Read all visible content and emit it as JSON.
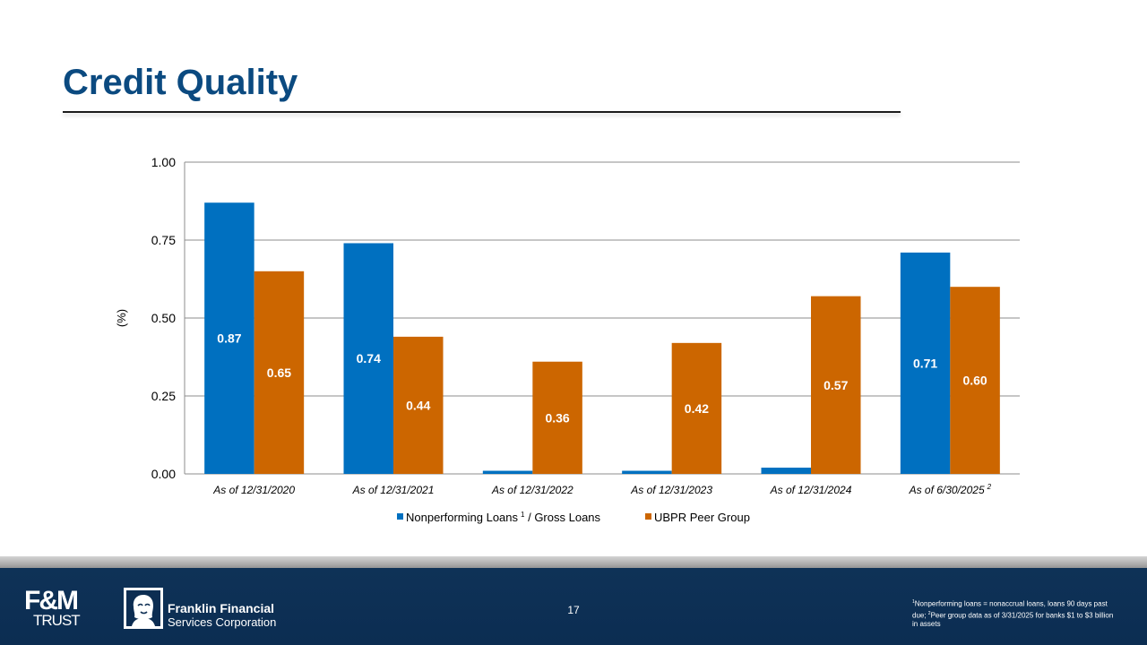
{
  "slide": {
    "title": "Credit Quality",
    "page_number": "17"
  },
  "footer": {
    "fm_logo": {
      "line1": "F&M",
      "line2": "TRUST"
    },
    "ffsc_logo": {
      "line1": "Franklin Financial",
      "line2": "Services Corporation"
    },
    "footnote": {
      "marker1": "1",
      "text1": "Nonperforming loans = nonaccrual loans, loans 90 days past due; ",
      "marker2": "2",
      "text2": "Peer group data as of 3/31/2025 for banks $1 to $3 billion in assets"
    }
  },
  "colors": {
    "title": "#0b4a80",
    "series1": "#0070c0",
    "series2": "#cc6600",
    "footer_band": "#0c2d52"
  },
  "chart_data": {
    "type": "bar",
    "title": "",
    "xlabel": "",
    "ylabel": "(%)",
    "ylim": [
      0,
      1.0
    ],
    "yticks": [
      "0.00",
      "0.25",
      "0.50",
      "0.75",
      "1.00"
    ],
    "grid": true,
    "legend_position": "bottom",
    "categories": [
      {
        "label": "As of 12/31/2020",
        "sup": ""
      },
      {
        "label": "As of 12/31/2021",
        "sup": ""
      },
      {
        "label": "As of 12/31/2022",
        "sup": ""
      },
      {
        "label": "As of 12/31/2023",
        "sup": ""
      },
      {
        "label": "As of 12/31/2024",
        "sup": ""
      },
      {
        "label": "As of 6/30/2025",
        "sup": "2"
      }
    ],
    "series": [
      {
        "name": "Nonperforming Loans",
        "name_sup": "1",
        "name_suffix": " / Gross Loans",
        "color": "#0070c0",
        "values": [
          0.87,
          0.74,
          0.01,
          0.01,
          0.02,
          0.71
        ],
        "labels": [
          "0.87",
          "0.74",
          "",
          "",
          "",
          "0.71"
        ]
      },
      {
        "name": "UBPR Peer Group",
        "name_sup": "",
        "name_suffix": "",
        "color": "#cc6600",
        "values": [
          0.65,
          0.44,
          0.36,
          0.42,
          0.57,
          0.6
        ],
        "labels": [
          "0.65",
          "0.44",
          "0.36",
          "0.42",
          "0.57",
          "0.60"
        ]
      }
    ]
  }
}
